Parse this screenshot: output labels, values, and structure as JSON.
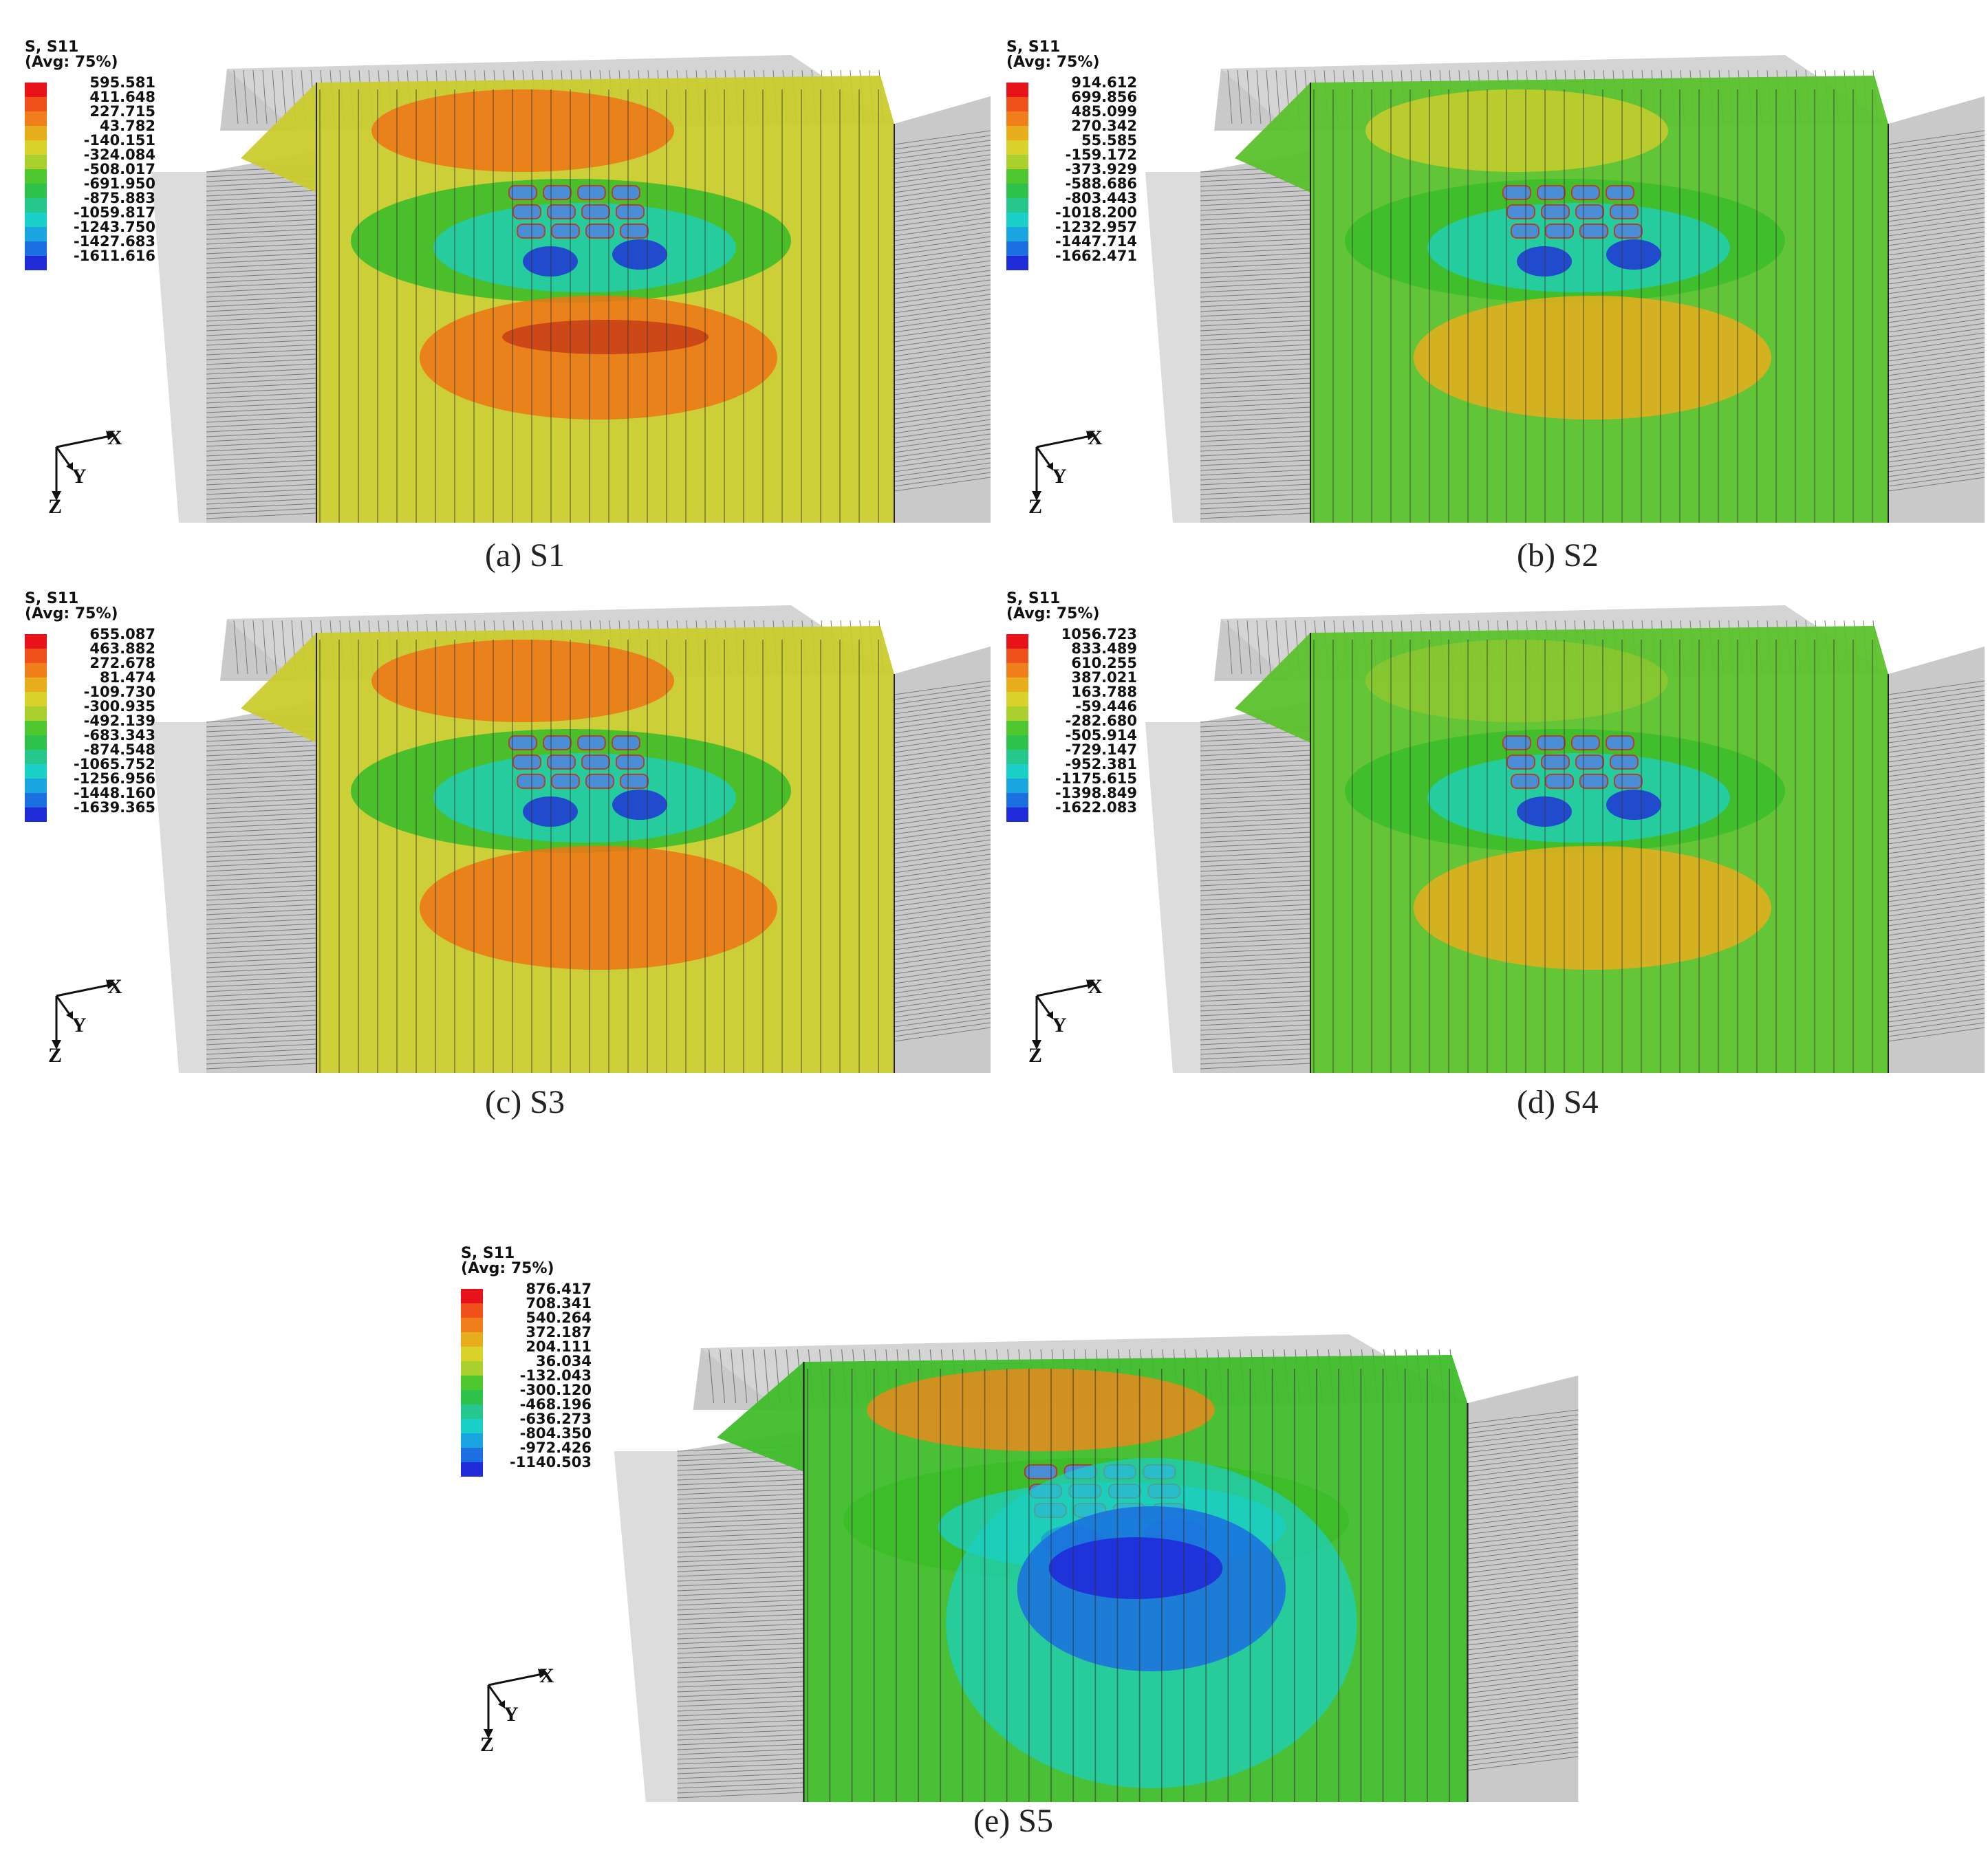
{
  "colors": {
    "red": "#e8121a",
    "orange": "#ee7418",
    "yellow": "#c9cc2c",
    "green": "#3dbd2a",
    "cyan": "#1bd0c6",
    "blue": "#1f2bd8",
    "mesh_gray": "#c9c9c9",
    "mesh_line": "#555555"
  },
  "legend_colors": [
    "#e8121a",
    "#f0501a",
    "#f07e1a",
    "#e8ad1c",
    "#d9d22a",
    "#a9d02c",
    "#4fc72e",
    "#2fc24a",
    "#25c78c",
    "#1ad0c8",
    "#19a6e0",
    "#1b6fe0",
    "#1f2bd8"
  ],
  "panels": [
    {
      "id": "a",
      "legend_title": "S, S11",
      "legend_subtitle": "(Avg: 75%)",
      "legend_values": [
        "595.581",
        "411.648",
        "227.715",
        "43.782",
        "-140.151",
        "-324.084",
        "-508.017",
        "-691.950",
        "-875.883",
        "-1059.817",
        "-1243.750",
        "-1427.683",
        "-1611.616"
      ],
      "caption": "(a) S1",
      "base_color": "#c9cc2c",
      "axes": {
        "x": "X",
        "y": "Y",
        "z": "Z"
      }
    },
    {
      "id": "b",
      "legend_title": "S, S11",
      "legend_subtitle": "(Avg: 75%)",
      "legend_values": [
        "914.612",
        "699.856",
        "485.099",
        "270.342",
        "55.585",
        "-159.172",
        "-373.929",
        "-588.686",
        "-803.443",
        "-1018.200",
        "-1232.957",
        "-1447.714",
        "-1662.471"
      ],
      "caption": "(b) S2",
      "base_color": "#58c22c",
      "axes": {
        "x": "X",
        "y": "Y",
        "z": "Z"
      }
    },
    {
      "id": "c",
      "legend_title": "S, S11",
      "legend_subtitle": "(Avg: 75%)",
      "legend_values": [
        "655.087",
        "463.882",
        "272.678",
        "81.474",
        "-109.730",
        "-300.935",
        "-492.139",
        "-683.343",
        "-874.548",
        "-1065.752",
        "-1256.956",
        "-1448.160",
        "-1639.365"
      ],
      "caption": "(c) S3",
      "base_color": "#c9cc2c",
      "axes": {
        "x": "X",
        "y": "Y",
        "z": "Z"
      }
    },
    {
      "id": "d",
      "legend_title": "S, S11",
      "legend_subtitle": "(Avg: 75%)",
      "legend_values": [
        "1056.723",
        "833.489",
        "610.255",
        "387.021",
        "163.788",
        "-59.446",
        "-282.680",
        "-505.914",
        "-729.147",
        "-952.381",
        "-1175.615",
        "-1398.849",
        "-1622.083"
      ],
      "caption": "(d) S4",
      "base_color": "#5cc22c",
      "axes": {
        "x": "X",
        "y": "Y",
        "z": "Z"
      }
    },
    {
      "id": "e",
      "legend_title": "S, S11",
      "legend_subtitle": "(Avg: 75%)",
      "legend_values": [
        "876.417",
        "708.341",
        "540.264",
        "372.187",
        "204.111",
        "36.034",
        "-132.043",
        "-300.120",
        "-468.196",
        "-636.273",
        "-804.350",
        "-972.426",
        "-1140.503"
      ],
      "caption": "(e) S5",
      "base_color": "#3fbd2a",
      "axes": {
        "x": "X",
        "y": "Y",
        "z": "Z"
      }
    }
  ]
}
